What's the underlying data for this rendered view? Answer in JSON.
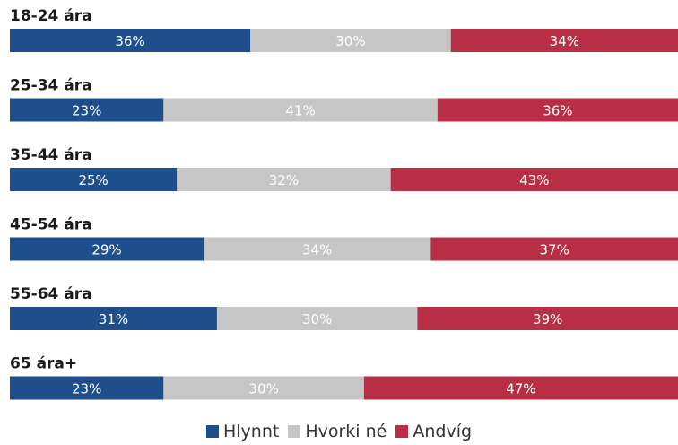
{
  "chart_data": {
    "type": "bar",
    "orientation": "horizontal-stacked-100",
    "categories": [
      "18-24 ára",
      "25-34 ára",
      "35-44 ára",
      "45-54 ára",
      "55-64 ára",
      "65 ára+"
    ],
    "series": [
      {
        "name": "Hlynnt",
        "color": "#1f4e8c",
        "values": [
          36,
          23,
          25,
          29,
          31,
          23
        ],
        "labels": [
          "36%",
          "23%",
          "25%",
          "29%",
          "31%",
          "23%"
        ]
      },
      {
        "name": "Hvorki né",
        "color": "#c6c6c6",
        "values": [
          30,
          41,
          32,
          34,
          30,
          30
        ],
        "labels": [
          "30%",
          "41%",
          "32%",
          "34%",
          "30%",
          "30%"
        ]
      },
      {
        "name": "Andvíg",
        "color": "#b82e45",
        "values": [
          34,
          36,
          43,
          37,
          39,
          47
        ],
        "labels": [
          "34%",
          "36%",
          "43%",
          "37%",
          "39%",
          "47%"
        ]
      }
    ],
    "legend_position": "bottom-center",
    "grid": false
  }
}
